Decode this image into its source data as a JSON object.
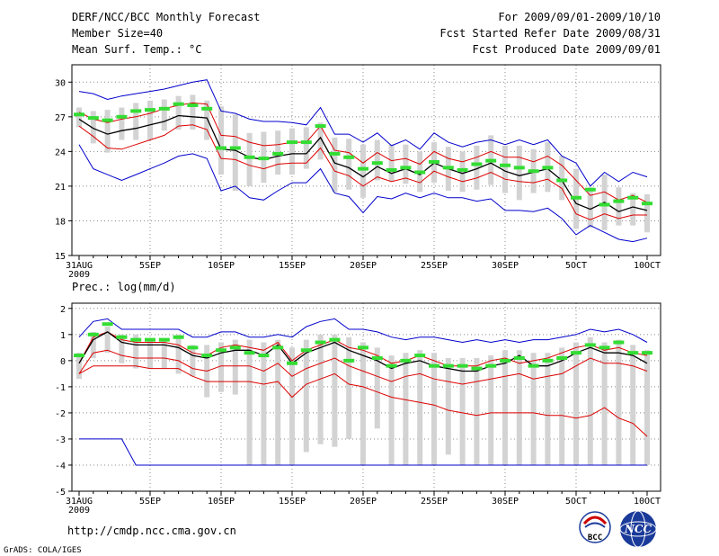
{
  "header": {
    "title_left_1": "DERF/NCC/BCC Monthly Forecast",
    "title_left_2": "Member Size=40",
    "title_left_3": "Mean Surf. Temp.: °C",
    "title_right_1": "For 2009/09/01-2009/10/10",
    "title_right_2": "Fcst Started Refer Date 2009/08/31",
    "title_right_3": "Fcst Produced Date 2009/09/01"
  },
  "footer": {
    "url": "http://cmdp.ncc.cma.gov.cn",
    "grads": "GrADS: COLA/IGES",
    "logo1_text": "BCC",
    "logo2_text": "NCC"
  },
  "colors": {
    "envelope": "#0000cc",
    "spread": "#dd0000",
    "mean": "#000000",
    "box": "#d3d3d3",
    "marker": "#33dd33",
    "grid": "#888888"
  },
  "chart_data": [
    {
      "type": "line",
      "title": "Mean Surf. Temp.: °C",
      "x_start_label": "31AUG",
      "x_year_label": "2009",
      "xtick_labels": [
        "31AUG",
        "5SEP",
        "10SEP",
        "15SEP",
        "20SEP",
        "25SEP",
        "30SEP",
        "5OCT",
        "10OCT"
      ],
      "xtick_days": [
        0,
        5,
        10,
        15,
        20,
        25,
        30,
        35,
        40
      ],
      "ylim": [
        15,
        31.5
      ],
      "yticks": [
        15,
        18,
        21,
        24,
        27,
        30
      ],
      "series": [
        {
          "name": "max",
          "values": [
            29.2,
            29.0,
            28.5,
            28.8,
            29.0,
            29.2,
            29.4,
            29.7,
            30.0,
            30.2,
            27.5,
            27.3,
            26.8,
            26.6,
            26.6,
            26.5,
            26.3,
            27.8,
            25.5,
            25.5,
            24.8,
            25.6,
            24.5,
            25.0,
            24.2,
            25.6,
            24.8,
            24.4,
            24.8,
            25.0,
            24.6,
            25.0,
            24.6,
            25.0,
            23.6,
            23.0,
            21.0,
            22.2,
            21.4,
            22.2,
            21.8
          ]
        },
        {
          "name": "p_upper",
          "values": [
            27.4,
            26.8,
            26.5,
            26.8,
            27.0,
            27.3,
            27.7,
            28.0,
            28.2,
            28.1,
            25.4,
            25.3,
            24.8,
            24.5,
            24.6,
            24.8,
            24.8,
            26.2,
            24.1,
            23.9,
            23.0,
            23.9,
            23.2,
            23.4,
            22.9,
            24.0,
            23.4,
            23.1,
            23.5,
            24.0,
            23.5,
            23.5,
            23.1,
            23.6,
            22.8,
            21.5,
            20.2,
            20.5,
            19.8,
            20.2,
            19.6
          ]
        },
        {
          "name": "mean",
          "values": [
            26.8,
            26.0,
            25.5,
            25.8,
            26.0,
            26.3,
            26.6,
            27.1,
            27.0,
            26.9,
            24.2,
            24.1,
            23.5,
            23.3,
            23.6,
            23.8,
            23.8,
            25.2,
            23.0,
            22.6,
            21.8,
            22.7,
            22.1,
            22.5,
            22.0,
            23.0,
            22.5,
            22.1,
            22.5,
            23.0,
            22.3,
            21.9,
            22.2,
            22.5,
            21.5,
            19.5,
            19.0,
            19.6,
            18.8,
            19.2,
            18.9
          ]
        },
        {
          "name": "p_lower",
          "values": [
            26.2,
            25.3,
            24.3,
            24.2,
            24.6,
            25.0,
            25.4,
            26.2,
            26.3,
            25.9,
            23.4,
            23.3,
            22.8,
            22.5,
            22.9,
            23.0,
            23.0,
            24.3,
            22.3,
            21.9,
            21.0,
            21.8,
            21.4,
            21.7,
            21.3,
            22.3,
            21.8,
            21.4,
            21.7,
            22.2,
            21.6,
            21.4,
            21.3,
            21.6,
            20.8,
            18.6,
            18.1,
            18.6,
            18.2,
            18.5,
            18.5
          ]
        },
        {
          "name": "min",
          "values": [
            24.6,
            22.5,
            22.0,
            21.5,
            22.0,
            22.5,
            23.0,
            23.6,
            23.8,
            23.4,
            20.6,
            21.0,
            20.0,
            19.8,
            20.6,
            21.3,
            21.3,
            22.5,
            20.4,
            20.1,
            18.7,
            20.1,
            19.9,
            20.4,
            20.0,
            20.4,
            20.0,
            20.0,
            19.7,
            19.9,
            18.9,
            18.9,
            18.8,
            19.1,
            18.2,
            16.8,
            17.6,
            17.0,
            16.4,
            16.2,
            16.5
          ]
        },
        {
          "name": "box_top",
          "values": [
            27.8,
            27.5,
            27.6,
            27.8,
            28.2,
            28.4,
            28.5,
            28.8,
            28.9,
            28.4,
            27.9,
            27.2,
            25.6,
            25.7,
            25.8,
            26.0,
            26.1,
            26.5,
            25.2,
            25.1,
            24.6,
            25.0,
            24.6,
            24.6,
            24.0,
            24.8,
            24.4,
            24.0,
            24.5,
            25.4,
            24.5,
            24.5,
            24.2,
            24.8,
            23.6,
            22.5,
            20.9,
            22.0,
            20.9,
            20.4,
            20.3
          ]
        },
        {
          "name": "box_bottom",
          "values": [
            26.1,
            24.7,
            23.9,
            25.0,
            25.0,
            25.0,
            25.8,
            25.9,
            25.9,
            25.0,
            22.0,
            20.6,
            21.0,
            21.3,
            22.0,
            22.0,
            22.5,
            23.3,
            20.5,
            20.7,
            20.0,
            21.5,
            21.4,
            21.2,
            20.5,
            21.3,
            20.6,
            20.5,
            20.7,
            21.1,
            20.4,
            19.8,
            20.4,
            20.5,
            19.8,
            17.3,
            17.4,
            17.2,
            17.6,
            17.6,
            17.0
          ]
        },
        {
          "name": "observed",
          "values": [
            27.2,
            26.9,
            26.7,
            27.0,
            27.5,
            27.6,
            27.7,
            28.1,
            28.0,
            27.7,
            24.3,
            24.3,
            23.5,
            23.4,
            23.8,
            24.8,
            24.8,
            26.2,
            23.8,
            23.5,
            22.5,
            23.0,
            22.4,
            22.6,
            22.2,
            23.1,
            22.6,
            22.4,
            22.9,
            23.2,
            22.8,
            22.6,
            22.3,
            22.6,
            21.5,
            20.0,
            20.7,
            19.4,
            19.7,
            20.0,
            19.5
          ]
        }
      ]
    },
    {
      "type": "line",
      "title": "Prec.: log(mm/d)",
      "x_start_label": "31AUG",
      "x_year_label": "2009",
      "xtick_labels": [
        "31AUG",
        "5SEP",
        "10SEP",
        "15SEP",
        "20SEP",
        "25SEP",
        "30SEP",
        "5OCT",
        "10OCT"
      ],
      "xtick_days": [
        0,
        5,
        10,
        15,
        20,
        25,
        30,
        35,
        40
      ],
      "ylim": [
        -5,
        2.2
      ],
      "yticks": [
        -5,
        -4,
        -3,
        -2,
        -1,
        0,
        1,
        2
      ],
      "series": [
        {
          "name": "max",
          "values": [
            0.9,
            1.5,
            1.6,
            1.2,
            1.2,
            1.2,
            1.2,
            1.2,
            0.9,
            0.9,
            1.1,
            1.1,
            0.9,
            0.9,
            1.0,
            0.9,
            1.3,
            1.5,
            1.6,
            1.2,
            1.2,
            1.1,
            0.9,
            0.8,
            0.9,
            0.9,
            0.8,
            0.7,
            0.8,
            0.7,
            0.8,
            0.7,
            0.8,
            0.8,
            0.9,
            1.0,
            1.2,
            1.1,
            1.2,
            1.0,
            0.7
          ]
        },
        {
          "name": "p_upper",
          "values": [
            -0.1,
            0.9,
            1.1,
            0.8,
            0.7,
            0.7,
            0.7,
            0.6,
            0.3,
            0.2,
            0.5,
            0.6,
            0.5,
            0.4,
            0.7,
            0.0,
            0.4,
            0.6,
            0.8,
            0.5,
            0.4,
            0.2,
            -0.1,
            0.0,
            0.2,
            0.0,
            -0.2,
            -0.2,
            -0.2,
            0.0,
            0.1,
            -0.1,
            0.0,
            0.1,
            0.3,
            0.5,
            0.6,
            0.4,
            0.5,
            0.3,
            0.2
          ]
        },
        {
          "name": "mean",
          "values": [
            -0.1,
            0.8,
            1.1,
            0.7,
            0.6,
            0.6,
            0.6,
            0.5,
            0.2,
            0.1,
            0.3,
            0.4,
            0.4,
            0.2,
            0.6,
            -0.1,
            0.3,
            0.5,
            0.7,
            0.4,
            0.2,
            0.0,
            -0.3,
            -0.1,
            0.0,
            -0.2,
            -0.3,
            -0.4,
            -0.4,
            -0.2,
            -0.1,
            0.2,
            -0.2,
            -0.2,
            0.0,
            0.3,
            0.5,
            0.3,
            0.3,
            0.2,
            -0.1
          ]
        },
        {
          "name": "p_lower",
          "values": [
            -0.5,
            0.3,
            0.4,
            0.2,
            0.1,
            0.1,
            0.1,
            0.0,
            -0.3,
            -0.4,
            -0.2,
            -0.2,
            -0.2,
            -0.4,
            -0.1,
            -0.6,
            -0.3,
            -0.1,
            0.1,
            -0.2,
            -0.4,
            -0.6,
            -0.8,
            -0.6,
            -0.5,
            -0.7,
            -0.8,
            -0.9,
            -0.8,
            -0.7,
            -0.6,
            -0.5,
            -0.7,
            -0.6,
            -0.5,
            -0.2,
            0.1,
            -0.1,
            -0.1,
            -0.2,
            -0.4
          ]
        },
        {
          "name": "p_lower2",
          "values": [
            -0.5,
            -0.2,
            -0.2,
            -0.2,
            -0.2,
            -0.3,
            -0.3,
            -0.3,
            -0.6,
            -0.8,
            -0.8,
            -0.8,
            -0.8,
            -0.9,
            -0.8,
            -1.4,
            -0.9,
            -0.7,
            -0.5,
            -0.9,
            -1.0,
            -1.2,
            -1.4,
            -1.5,
            -1.6,
            -1.7,
            -1.9,
            -2.0,
            -2.1,
            -2.0,
            -2.0,
            -2.0,
            -2.0,
            -2.1,
            -2.1,
            -2.2,
            -2.1,
            -1.8,
            -2.2,
            -2.4,
            -2.9
          ]
        },
        {
          "name": "min",
          "values": [
            -3.0,
            -3.0,
            -3.0,
            -3.0,
            -4.0,
            -4.0,
            -4.0,
            -4.0,
            -4.0,
            -4.0,
            -4.0,
            -4.0,
            -4.0,
            -4.0,
            -4.0,
            -4.0,
            -4.0,
            -4.0,
            -4.0,
            -4.0,
            -4.0,
            -4.0,
            -4.0,
            -4.0,
            -4.0,
            -4.0,
            -4.0,
            -4.0,
            -4.0,
            -4.0,
            -4.0,
            -4.0,
            -4.0,
            -4.0,
            -4.0,
            -4.0,
            -4.0,
            -4.0,
            -4.0,
            -4.0,
            -4.0
          ]
        },
        {
          "name": "box_top",
          "values": [
            0.3,
            1.1,
            1.3,
            1.0,
            1.0,
            0.8,
            0.8,
            1.0,
            0.6,
            0.6,
            0.7,
            0.8,
            0.8,
            0.7,
            0.8,
            0.5,
            0.8,
            1.0,
            1.0,
            0.9,
            0.7,
            0.5,
            0.2,
            0.3,
            0.4,
            0.3,
            0.1,
            0.1,
            0.1,
            0.2,
            0.4,
            0.4,
            0.3,
            0.3,
            0.5,
            0.7,
            0.9,
            0.7,
            0.8,
            0.6,
            0.4
          ]
        },
        {
          "name": "box_bottom",
          "values": [
            -0.7,
            0.1,
            0.3,
            -0.1,
            -0.3,
            -0.3,
            -0.3,
            -0.5,
            -0.6,
            -1.4,
            -1.2,
            -1.3,
            -4.0,
            -4.0,
            -4.0,
            -4.0,
            -3.5,
            -3.2,
            -3.3,
            -3.0,
            -4.0,
            -2.6,
            -4.0,
            -4.0,
            -4.0,
            -4.0,
            -3.6,
            -4.0,
            -4.0,
            -4.0,
            -4.0,
            -4.0,
            -4.0,
            -4.0,
            -4.0,
            -4.0,
            -4.0,
            -4.0,
            -4.0,
            -4.0,
            -4.0
          ]
        },
        {
          "name": "observed",
          "values": [
            0.2,
            1.0,
            1.4,
            0.9,
            0.8,
            0.8,
            0.8,
            0.9,
            0.5,
            0.2,
            0.4,
            0.5,
            0.3,
            0.2,
            0.5,
            -0.1,
            0.4,
            0.7,
            0.8,
            0.0,
            0.5,
            0.1,
            -0.2,
            0.0,
            0.2,
            -0.2,
            -0.2,
            -0.2,
            -0.3,
            -0.2,
            0.0,
            0.1,
            -0.2,
            0.0,
            0.1,
            0.3,
            0.6,
            0.5,
            0.7,
            0.3,
            0.3
          ]
        }
      ]
    }
  ]
}
